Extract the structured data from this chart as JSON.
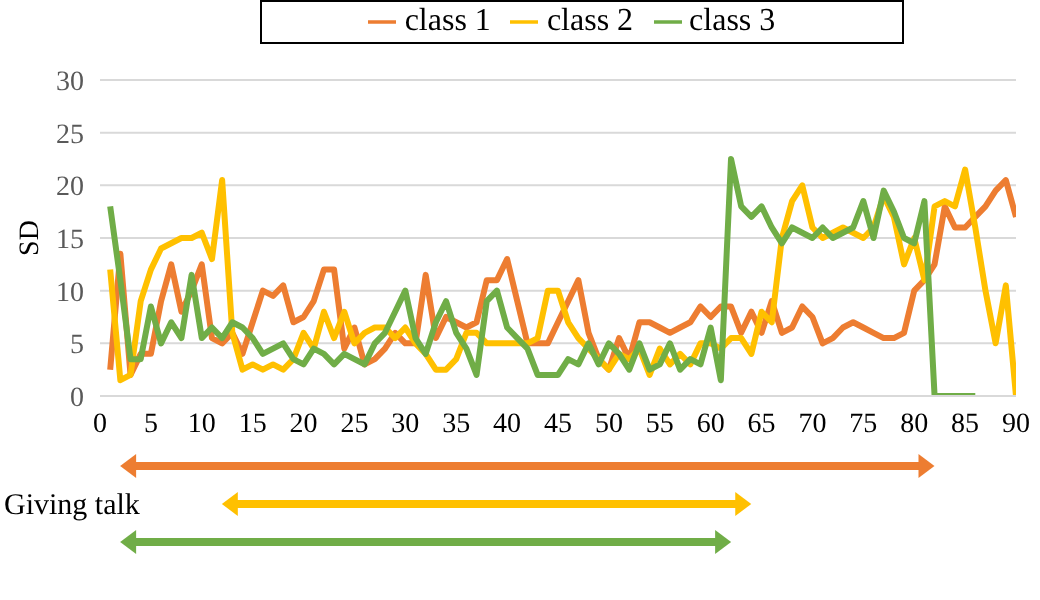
{
  "chart_data": {
    "type": "line",
    "ylabel": "SD",
    "x": [
      1,
      2,
      3,
      4,
      5,
      6,
      7,
      8,
      9,
      10,
      11,
      12,
      13,
      14,
      15,
      16,
      17,
      18,
      19,
      20,
      21,
      22,
      23,
      24,
      25,
      26,
      27,
      28,
      29,
      30,
      31,
      32,
      33,
      34,
      35,
      36,
      37,
      38,
      39,
      40,
      41,
      42,
      43,
      44,
      45,
      46,
      47,
      48,
      49,
      50,
      51,
      52,
      53,
      54,
      55,
      56,
      57,
      58,
      59,
      60,
      61,
      62,
      63,
      64,
      65,
      66,
      67,
      68,
      69,
      70,
      71,
      72,
      73,
      74,
      75,
      76,
      77,
      78,
      79,
      80,
      81,
      82,
      83,
      84,
      85,
      86,
      87,
      88,
      89,
      90
    ],
    "series": [
      {
        "name": "class 1",
        "color": "#ed7d31",
        "values": [
          2.5,
          13.5,
          2,
          4,
          4,
          9,
          12.5,
          8,
          10,
          12.5,
          5.5,
          5,
          6,
          4,
          7,
          10,
          9.5,
          10.5,
          7,
          7.5,
          9,
          12,
          12,
          4.5,
          6.5,
          3,
          3.5,
          4.5,
          6,
          5,
          5,
          11.5,
          5.5,
          7.5,
          7,
          6.5,
          7,
          11,
          11,
          13,
          9,
          5,
          5,
          5,
          7,
          9,
          11,
          6,
          3.5,
          2.5,
          5.5,
          3.5,
          7,
          7,
          6.5,
          6,
          6.5,
          7,
          8.5,
          7.5,
          8.5,
          8.5,
          6,
          8,
          6,
          9,
          6,
          6.5,
          8.5,
          7.5,
          5,
          5.5,
          6.5,
          7,
          6.5,
          6,
          5.5,
          5.5,
          6,
          10,
          11,
          12.5,
          18,
          16,
          16,
          17,
          18,
          19.5,
          20.5,
          17
        ]
      },
      {
        "name": "class 2",
        "color": "#ffc000",
        "values": [
          12,
          1.5,
          2,
          9,
          12,
          14,
          14.5,
          15,
          15,
          15.5,
          13,
          20.5,
          6,
          2.5,
          3,
          2.5,
          3,
          2.5,
          3.5,
          6,
          4.5,
          8,
          5.5,
          8,
          5,
          6,
          6.5,
          6.5,
          5.5,
          6.5,
          5,
          4,
          2.5,
          2.5,
          3.5,
          6,
          6,
          5,
          5,
          5,
          5,
          5,
          5.5,
          10,
          10,
          7,
          5.5,
          4.5,
          3.5,
          2.5,
          4,
          3.5,
          4.5,
          2,
          4.5,
          3,
          4,
          3,
          5,
          5,
          4.5,
          5.5,
          5.5,
          4,
          8,
          7,
          15,
          18.5,
          20,
          16,
          15,
          15.5,
          16,
          15.5,
          15,
          16,
          19,
          17,
          12.5,
          15,
          11,
          18,
          18.5,
          18,
          21.5,
          16,
          10,
          5,
          10.5,
          0
        ]
      },
      {
        "name": "class 3",
        "color": "#70ad47",
        "values": [
          18,
          11,
          3.5,
          3.5,
          8.5,
          5,
          7,
          5.5,
          11.5,
          5.5,
          6.5,
          5.5,
          7,
          6.5,
          5.5,
          4,
          4.5,
          5,
          3.5,
          3,
          4.5,
          4,
          3,
          4,
          3.5,
          3,
          5,
          6,
          8,
          10,
          5.5,
          4,
          7,
          9,
          6,
          4.5,
          2,
          9,
          10,
          6.5,
          5.5,
          4.5,
          2,
          2,
          2,
          3.5,
          3,
          5,
          3,
          5,
          4,
          2.5,
          5,
          2.5,
          3,
          5,
          2.5,
          3.5,
          3,
          6.5,
          1.5,
          22.5,
          18,
          17,
          18,
          16,
          14.5,
          16,
          15.5,
          15,
          16,
          15,
          15.5,
          16,
          18.5,
          15,
          19.5,
          17.5,
          15,
          14.5,
          18.5,
          0,
          0,
          0,
          0,
          0,
          null,
          null,
          null,
          null
        ]
      }
    ],
    "xlim": [
      0,
      90
    ],
    "xticks": [
      0,
      5,
      10,
      15,
      20,
      25,
      30,
      35,
      40,
      45,
      50,
      55,
      60,
      65,
      70,
      75,
      80,
      85,
      90
    ],
    "ylim": [
      0,
      30
    ],
    "yticks": [
      0,
      5,
      10,
      15,
      20,
      25,
      30
    ],
    "grid": "y",
    "legend": "top",
    "marker": "none",
    "line_style": "solid",
    "annotations": [
      "Giving talk"
    ]
  }
}
